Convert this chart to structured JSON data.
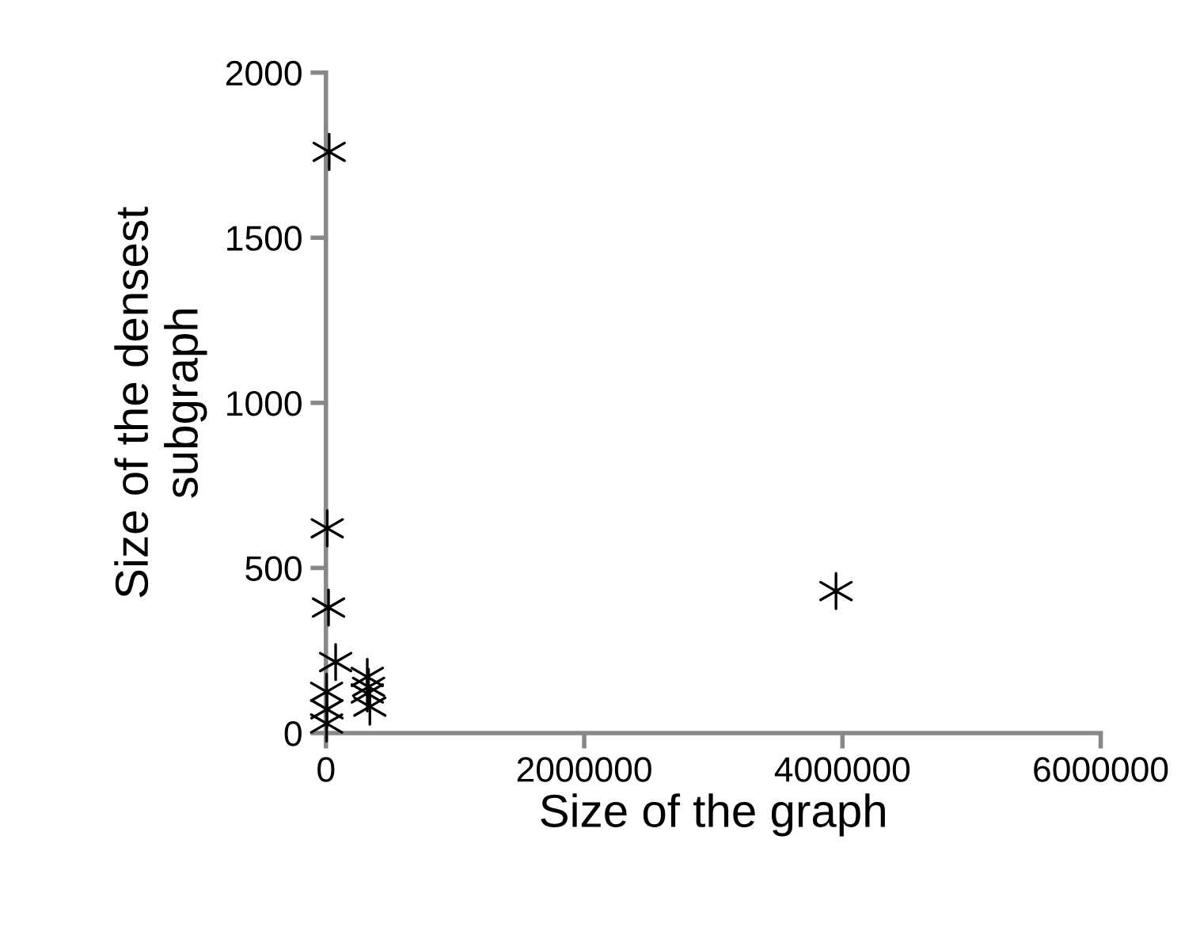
{
  "chart_data": {
    "type": "scatter",
    "xlabel": "Size of the graph",
    "ylabel": "Size of the densest\nsubgraph",
    "x": [
      25000,
      10000,
      20000,
      75000,
      5000,
      8000,
      5000,
      320000,
      330000,
      320000,
      340000,
      3950000
    ],
    "values": [
      1760,
      620,
      380,
      215,
      125,
      72,
      29,
      170,
      140,
      120,
      80,
      430
    ],
    "color": "#000000",
    "marker": "cross",
    "grid": false,
    "legend": false,
    "xlim": [
      0,
      6000000
    ],
    "xticks": [
      0,
      2000000,
      4000000,
      6000000
    ],
    "ylim": [
      0,
      2000
    ],
    "yticks": [
      0,
      500,
      1000,
      1500,
      2000
    ]
  }
}
